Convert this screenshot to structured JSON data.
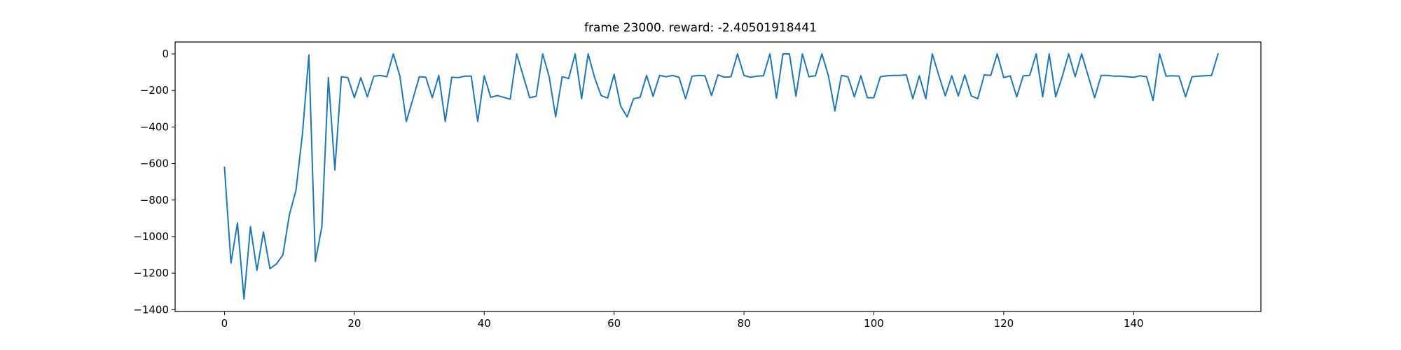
{
  "chart_data": {
    "type": "line",
    "title": "frame 23000. reward: -2.40501918441",
    "xlabel": "",
    "ylabel": "",
    "xlim": [
      -7.6,
      159.6
    ],
    "ylim": [
      -1410,
      65
    ],
    "xticks": [
      0,
      20,
      40,
      60,
      80,
      100,
      120,
      140
    ],
    "yticks": [
      0,
      -200,
      -400,
      -600,
      -800,
      -1000,
      -1200,
      -1400
    ],
    "xtick_labels": [
      "0",
      "20",
      "40",
      "60",
      "80",
      "100",
      "120",
      "140"
    ],
    "ytick_labels": [
      "0",
      "−200",
      "−400",
      "−600",
      "−800",
      "−1000",
      "−1200",
      "−1400"
    ],
    "grid": false,
    "color": "#1f77b4",
    "series": [
      {
        "values": [
          -620,
          -1145,
          -925,
          -1342,
          -945,
          -1185,
          -975,
          -1175,
          -1150,
          -1100,
          -880,
          -748,
          -440,
          -5,
          -1135,
          -945,
          -130,
          -635,
          -125,
          -130,
          -240,
          -130,
          -235,
          -122,
          -118,
          -125,
          0,
          -120,
          -370,
          -250,
          -125,
          -128,
          -240,
          -118,
          -370,
          -128,
          -130,
          -122,
          -122,
          -370,
          -120,
          -238,
          -228,
          -238,
          -248,
          0,
          -120,
          -240,
          -232,
          0,
          -125,
          -345,
          -125,
          -135,
          0,
          -245,
          0,
          -130,
          -228,
          -242,
          -112,
          -285,
          -345,
          -245,
          -238,
          -118,
          -232,
          -118,
          -125,
          -118,
          -128,
          -245,
          -122,
          -118,
          -120,
          -228,
          -115,
          -128,
          -125,
          0,
          -118,
          -128,
          -122,
          -120,
          0,
          -242,
          0,
          0,
          -232,
          0,
          -125,
          -120,
          0,
          -120,
          -312,
          -118,
          -125,
          -235,
          -120,
          -240,
          -240,
          -125,
          -120,
          -118,
          -118,
          -115,
          -245,
          -120,
          -245,
          0,
          -118,
          -230,
          -120,
          -230,
          -115,
          -230,
          -245,
          -115,
          -118,
          0,
          -130,
          -120,
          -235,
          -120,
          -118,
          0,
          -235,
          0,
          -235,
          -125,
          0,
          -125,
          0,
          -120,
          -240,
          -118,
          -118,
          -122,
          -122,
          -125,
          -128,
          -120,
          -125,
          -255,
          0,
          -122,
          -120,
          -122,
          -235,
          -125,
          -122,
          -120,
          -118,
          0
        ]
      }
    ]
  }
}
